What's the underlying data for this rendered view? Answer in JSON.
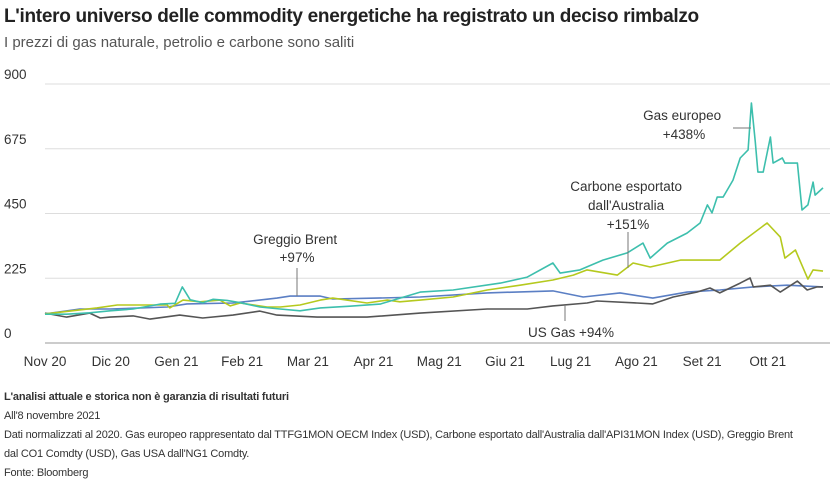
{
  "header": {
    "title": "L'intero universo delle commodity energetiche ha registrato un deciso rimbalzo",
    "subtitle": "I prezzi di gas naturale, petrolio e carbone sono saliti"
  },
  "chart_data": {
    "type": "line",
    "title": "L'intero universo delle commodity energetiche ha registrato un deciso rimbalzo",
    "subtitle": "I prezzi di gas naturale, petrolio e carbone sono saliti",
    "xlabel": "",
    "ylabel": "",
    "x_unit": "months since Nov 2020",
    "xlim": [
      0,
      11.84
    ],
    "ylim": [
      0,
      900
    ],
    "yticks": [
      0,
      225,
      450,
      675,
      900
    ],
    "xticks": [
      {
        "t": 0,
        "label": "Nov 20"
      },
      {
        "t": 1,
        "label": "Dic 20"
      },
      {
        "t": 2,
        "label": "Gen 21"
      },
      {
        "t": 3,
        "label": "Feb 21"
      },
      {
        "t": 4,
        "label": "Mar 21"
      },
      {
        "t": 5,
        "label": "Apr 21"
      },
      {
        "t": 6,
        "label": "Mag 21"
      },
      {
        "t": 7,
        "label": "Giu 21"
      },
      {
        "t": 8,
        "label": "Lug 21"
      },
      {
        "t": 9,
        "label": "Ago 21"
      },
      {
        "t": 10,
        "label": "Set 21"
      },
      {
        "t": 11,
        "label": "Ott 21"
      }
    ],
    "grid": true,
    "series": [
      {
        "name": "Gas europeo",
        "color": "#3dbfad",
        "x": [
          0,
          0.33,
          0.68,
          0.99,
          1.34,
          1.75,
          1.98,
          2.09,
          2.21,
          2.4,
          2.56,
          2.77,
          2.97,
          3.27,
          3.58,
          3.88,
          4.19,
          4.64,
          5.1,
          5.71,
          6.21,
          6.93,
          7.34,
          7.73,
          7.84,
          8.14,
          8.49,
          8.86,
          9.1,
          9.21,
          9.47,
          9.77,
          9.97,
          10.08,
          10.15,
          10.23,
          10.32,
          10.47,
          10.58,
          10.7,
          10.75,
          10.81,
          10.85,
          10.93,
          11.04,
          11.08,
          11.22,
          11.26,
          11.45,
          11.52,
          11.61,
          11.69,
          11.72,
          11.84
        ],
        "y": [
          100,
          100,
          105,
          112,
          118,
          135,
          138,
          195,
          150,
          140,
          152,
          148,
          140,
          125,
          118,
          112,
          122,
          128,
          135,
          177,
          184,
          208,
          229,
          278,
          243,
          254,
          288,
          313,
          347,
          295,
          347,
          382,
          417,
          480,
          452,
          507,
          507,
          566,
          643,
          671,
          834,
          698,
          594,
          594,
          716,
          625,
          643,
          625,
          625,
          462,
          480,
          559,
          514,
          539
        ]
      },
      {
        "name": "Carbone esportato dall'Australia",
        "color": "#b5c91e",
        "x": [
          0,
          0.79,
          1.1,
          1.86,
          1.9,
          2.1,
          2.36,
          2.66,
          2.82,
          2.97,
          3.38,
          3.58,
          3.88,
          4.19,
          4.38,
          4.9,
          5.21,
          5.4,
          5.71,
          6.21,
          6.73,
          7.23,
          7.73,
          8.04,
          8.25,
          8.71,
          8.95,
          9.21,
          9.67,
          10.27,
          10.58,
          10.99,
          11.19,
          11.26,
          11.42,
          11.61,
          11.69,
          11.84
        ],
        "y": [
          101,
          122,
          132,
          132,
          122,
          149,
          143,
          149,
          129,
          139,
          125,
          125,
          132,
          149,
          156,
          139,
          149,
          143,
          149,
          160,
          184,
          201,
          219,
          236,
          254,
          236,
          278,
          264,
          288,
          288,
          347,
          417,
          368,
          295,
          323,
          222,
          254,
          250
        ]
      },
      {
        "name": "Greggio Brent",
        "color": "#5b7fc4",
        "x": [
          0,
          0.53,
          0.99,
          1.86,
          2.16,
          2.86,
          3.53,
          3.73,
          4.19,
          4.38,
          5.05,
          5.71,
          6.73,
          7.73,
          8.19,
          8.75,
          9.25,
          9.77,
          10.27,
          10.78,
          11.29,
          11.84
        ],
        "y": [
          101,
          118,
          118,
          125,
          136,
          139,
          156,
          163,
          163,
          153,
          156,
          160,
          174,
          181,
          160,
          174,
          156,
          177,
          184,
          195,
          201,
          195
        ]
      },
      {
        "name": "US Gas",
        "color": "#555555",
        "x": [
          0,
          0.33,
          0.68,
          0.84,
          0.99,
          1.34,
          1.6,
          2.05,
          2.4,
          2.86,
          3.27,
          3.53,
          4.14,
          4.9,
          5.71,
          6.73,
          7.34,
          7.73,
          8.25,
          8.4,
          9.01,
          9.25,
          9.56,
          9.92,
          10.12,
          10.27,
          10.58,
          10.73,
          10.78,
          11.04,
          11.19,
          11.45,
          11.6,
          11.75,
          11.84
        ],
        "y": [
          104,
          90,
          104,
          87,
          90,
          94,
          83,
          97,
          87,
          97,
          111,
          97,
          90,
          90,
          104,
          118,
          118,
          129,
          139,
          146,
          139,
          136,
          160,
          177,
          191,
          174,
          208,
          226,
          195,
          201,
          177,
          215,
          184,
          195,
          195
        ]
      }
    ],
    "annotations": [
      {
        "series": "Greggio Brent",
        "lines": [
          "Greggio Brent",
          "+97%"
        ]
      },
      {
        "series": "Carbone esportato dall'Australia",
        "lines": [
          "Carbone esportato",
          "dall'Australia",
          "+151%"
        ]
      },
      {
        "series": "Gas europeo",
        "lines": [
          "Gas europeo",
          "+438%"
        ]
      },
      {
        "series": "US Gas",
        "lines": [
          "US Gas +94%"
        ]
      }
    ]
  },
  "footer": {
    "disclaimer": "L'analisi attuale e storica non è garanzia di risultati futuri",
    "date": "All'8 novembre 2021",
    "note": "Dati normalizzati al 2020. Gas europeo rappresentato dal TTFG1MON OECM Index (USD), Carbone esportato dall'Australia dall'API31MON Index (USD), Greggio Brent dal CO1 Comdty (USD), Gas USA dall'NG1 Comdty.",
    "source": "Fonte: Bloomberg"
  }
}
